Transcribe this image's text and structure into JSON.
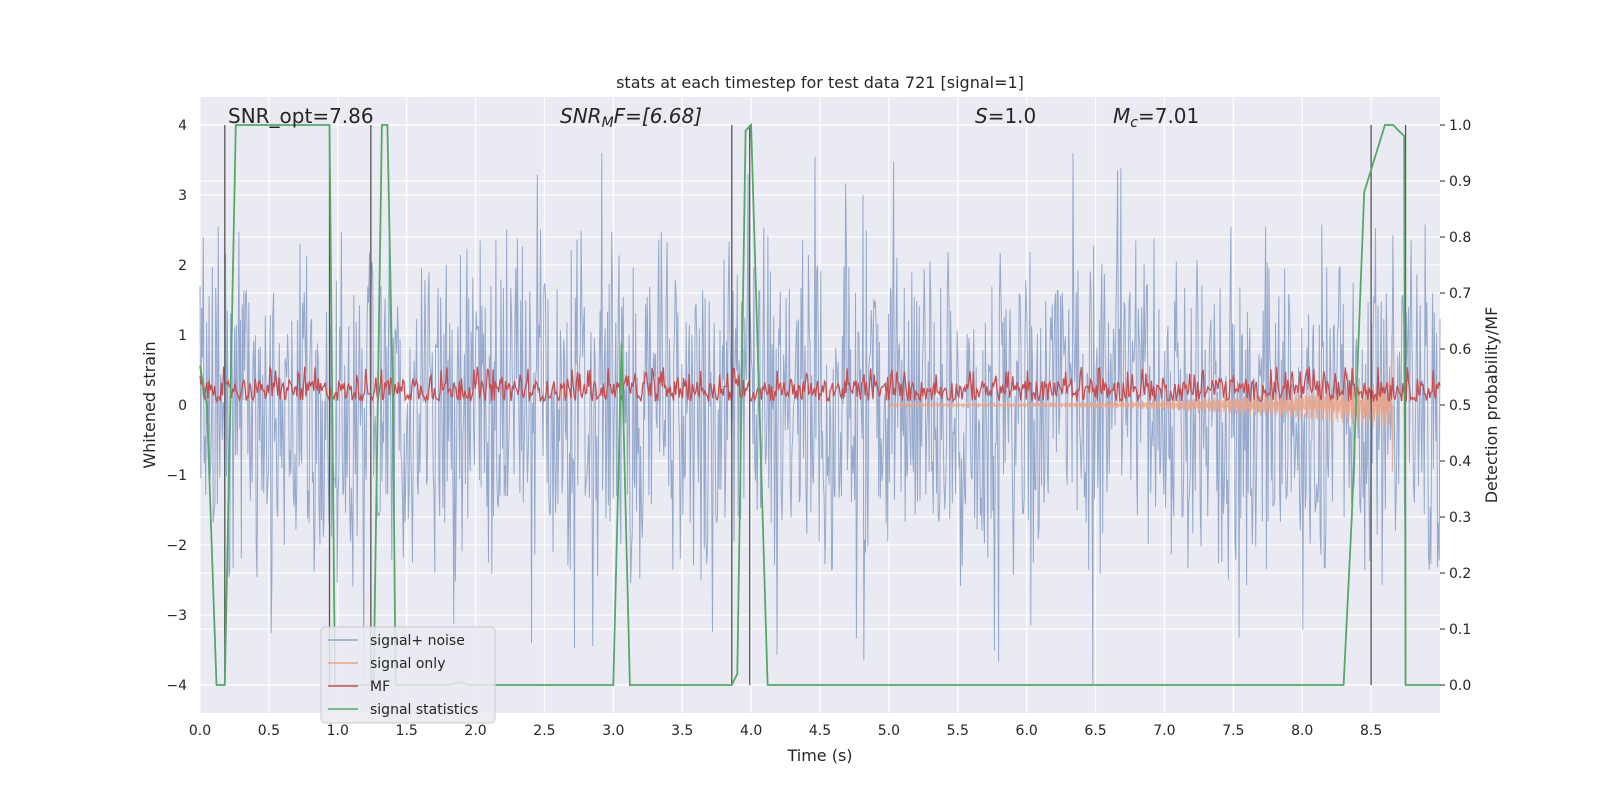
{
  "chart_data": {
    "type": "line",
    "title": "stats at each timestep for test data 721 [signal=1]",
    "xlabel": "Time (s)",
    "ylabel": "Whitened strain",
    "y2label": "Detection probability/MF",
    "xlim": [
      0,
      9
    ],
    "ylim": [
      -4.4,
      4.4
    ],
    "y2lim": [
      -0.05,
      1.05
    ],
    "xticks": [
      "0.0",
      "0.5",
      "1.0",
      "1.5",
      "2.0",
      "2.5",
      "3.0",
      "3.5",
      "4.0",
      "4.5",
      "5.0",
      "5.5",
      "6.0",
      "6.5",
      "7.0",
      "7.5",
      "8.0",
      "8.5"
    ],
    "yticks": [
      "4",
      "3",
      "2",
      "1",
      "0",
      "−1",
      "−2",
      "−3",
      "−4"
    ],
    "y2ticks": [
      "1.0",
      "0.9",
      "0.8",
      "0.7",
      "0.6",
      "0.5",
      "0.4",
      "0.3",
      "0.2",
      "0.1",
      "0.0"
    ],
    "grid": true,
    "legend_placement": "lower-left",
    "annotations": {
      "snr_opt": "SNR_opt=7.86",
      "snr_mf_base": "SNR",
      "snr_mf_sub": "M",
      "snr_mf_rest": "F=[6.68]",
      "s_base": "S",
      "s_rest": "=1.0",
      "mc_base": "M",
      "mc_sub": "c",
      "mc_rest": "=7.01"
    },
    "series": [
      {
        "name": "signal+ noise",
        "color": "#8da2c9",
        "kind": "noise",
        "amplitude_range": [
          -4.0,
          3.6
        ]
      },
      {
        "name": "signal only",
        "color": "#e8a48a",
        "kind": "chirp",
        "start": 5.0,
        "end": 8.66,
        "peak": 1.0,
        "trough": -0.95
      },
      {
        "name": "MF",
        "color": "#c44e52",
        "kind": "mf",
        "range": [
          0.05,
          0.55
        ]
      },
      {
        "name": "signal statistics",
        "color": "#55a868",
        "axis": "right",
        "x": [
          0.0,
          0.05,
          0.12,
          0.18,
          0.26,
          0.94,
          0.98,
          1.22,
          1.26,
          1.32,
          1.36,
          1.4,
          1.42,
          1.5,
          1.8,
          1.88,
          1.95,
          2.3,
          3.0,
          3.06,
          3.12,
          3.5,
          3.86,
          3.9,
          3.96,
          4.0,
          4.12,
          5.0,
          8.3,
          8.36,
          8.45,
          8.6,
          8.66,
          8.74,
          8.75,
          8.78,
          9.0
        ],
        "y": [
          0.57,
          0.5,
          0.0,
          0.0,
          1.0,
          1.0,
          0.0,
          0.0,
          0.0,
          1.0,
          1.0,
          0.5,
          0.0,
          0.0,
          0.0,
          0.005,
          0.0,
          0.0,
          0.0,
          0.61,
          0.0,
          0.0,
          0.0,
          0.02,
          0.99,
          1.0,
          0.0,
          0.0,
          0.0,
          0.3,
          0.88,
          1.0,
          1.0,
          0.98,
          0.0,
          0.0,
          0.0
        ]
      },
      {
        "name": "",
        "color": "#555555",
        "kind": "markers",
        "axis": "right",
        "x": [
          0.18,
          0.94,
          1.24,
          3.86,
          3.99,
          8.5,
          8.75
        ],
        "y_range": [
          0.0,
          1.0
        ]
      }
    ]
  }
}
